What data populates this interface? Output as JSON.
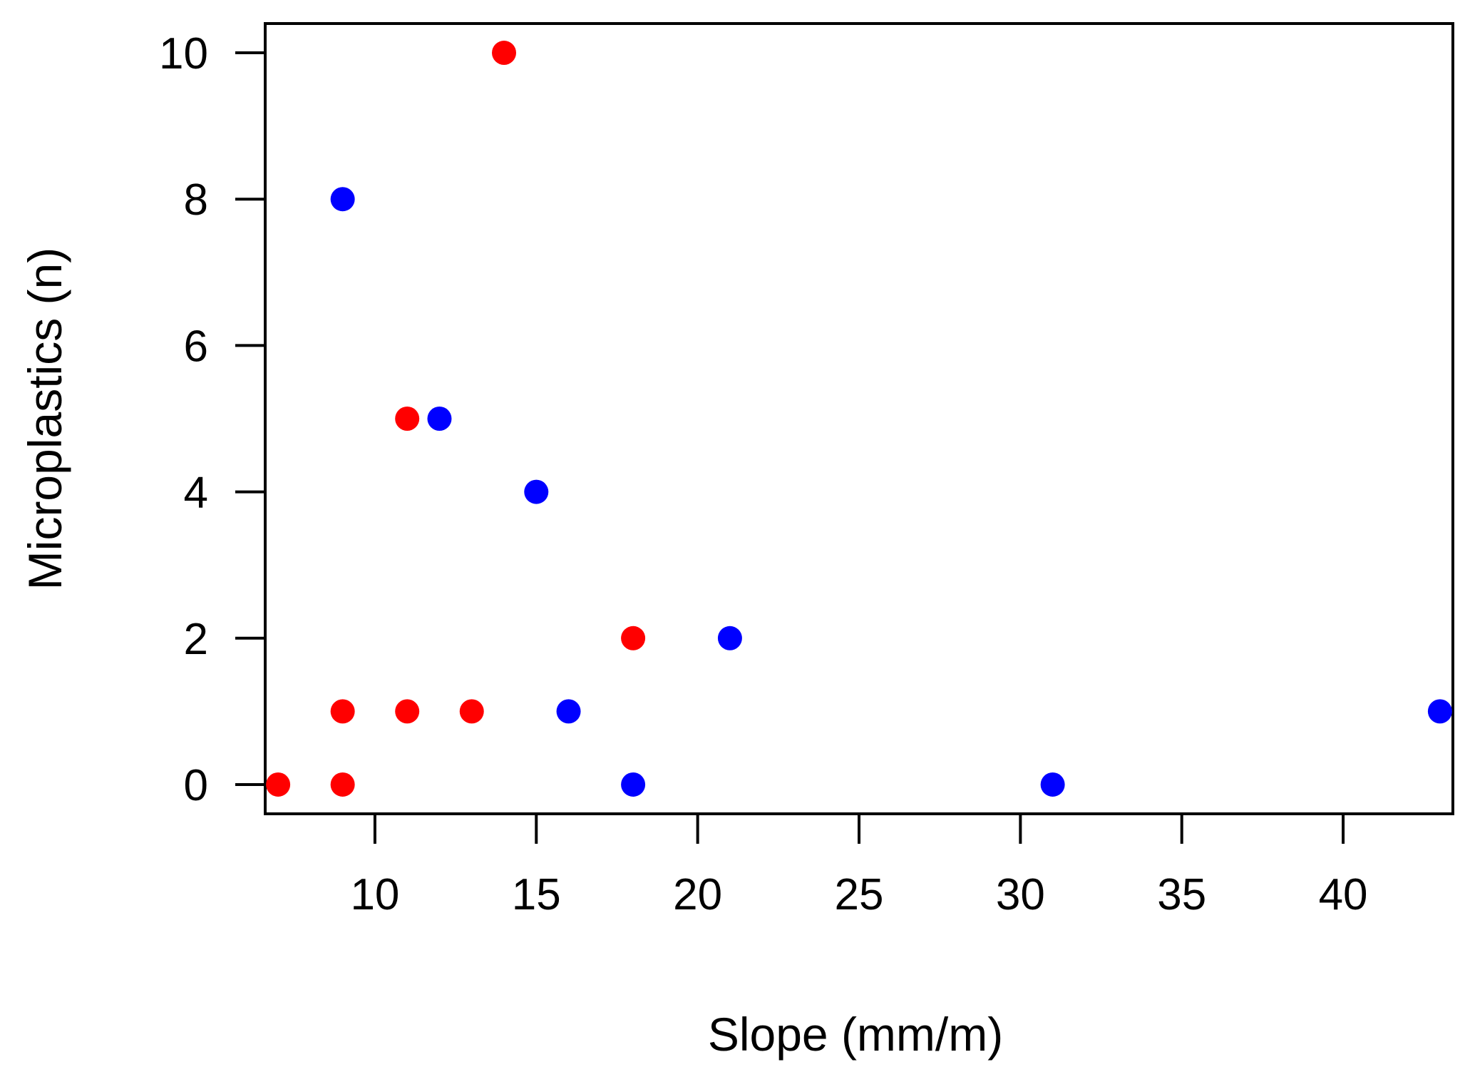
{
  "chart_data": {
    "type": "scatter",
    "title": "",
    "xlabel": "Slope (mm/m)",
    "ylabel": "Microplastics (n)",
    "xlim": [
      6.6,
      43.4
    ],
    "ylim": [
      -0.4,
      10.4
    ],
    "xticks": [
      10,
      15,
      20,
      25,
      30,
      35,
      40
    ],
    "yticks": [
      0,
      2,
      4,
      6,
      8,
      10
    ],
    "grid": false,
    "legend": "none",
    "series": [
      {
        "name": "red",
        "color": "#ff0000",
        "points": [
          {
            "x": 7,
            "y": 0
          },
          {
            "x": 9,
            "y": 0
          },
          {
            "x": 9,
            "y": 1
          },
          {
            "x": 11,
            "y": 1
          },
          {
            "x": 11,
            "y": 5
          },
          {
            "x": 13,
            "y": 1
          },
          {
            "x": 14,
            "y": 10
          },
          {
            "x": 18,
            "y": 2
          }
        ]
      },
      {
        "name": "blue",
        "color": "#0000ff",
        "points": [
          {
            "x": 9,
            "y": 8
          },
          {
            "x": 12,
            "y": 5
          },
          {
            "x": 15,
            "y": 4
          },
          {
            "x": 16,
            "y": 1
          },
          {
            "x": 18,
            "y": 0
          },
          {
            "x": 21,
            "y": 2
          },
          {
            "x": 31,
            "y": 0
          },
          {
            "x": 43,
            "y": 1
          }
        ]
      }
    ]
  }
}
